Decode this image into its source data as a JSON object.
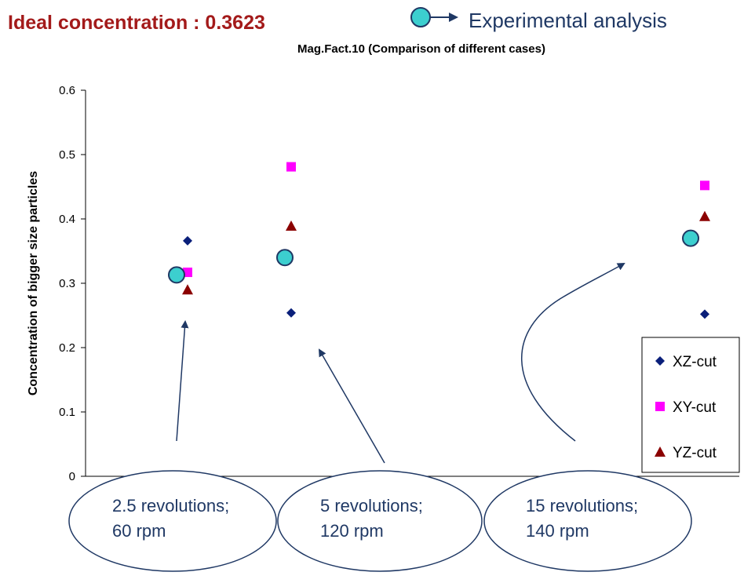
{
  "header": {
    "ideal_label": "Ideal concentration : 0.3623",
    "experimental_legend": "Experimental analysis"
  },
  "colors": {
    "ideal_text": "#a31a1a",
    "experimental": "#3ccfcf",
    "annotation": "#1f3864",
    "xz": "#0a1f7a",
    "xy": "#ff00ff",
    "yz": "#8b0000"
  },
  "chart_data": {
    "type": "scatter",
    "title": "Mag.Fact.10 (Comparison of different cases)",
    "ylabel": "Concentration of bigger size particles",
    "xlabel": "",
    "ylim": [
      0,
      0.6
    ],
    "yticks": [
      "0",
      "0.1",
      "0.2",
      "0.3",
      "0.4",
      "0.5",
      "0.6"
    ],
    "categories": [
      "2.5 revolutions; 60 rpm",
      "5 revolutions; 120 rpm",
      "15 revolutions; 140 rpm"
    ],
    "series": [
      {
        "name": "XZ-cut",
        "marker": "diamond",
        "values": [
          0.366,
          0.254,
          0.252
        ]
      },
      {
        "name": "XY-cut",
        "marker": "square",
        "values": [
          0.317,
          0.481,
          0.452
        ]
      },
      {
        "name": "YZ-cut",
        "marker": "triangle",
        "values": [
          0.29,
          0.389,
          0.404
        ]
      },
      {
        "name": "Experimental analysis",
        "marker": "circle",
        "values": [
          0.313,
          0.34,
          0.37
        ]
      }
    ],
    "legend": [
      "XZ-cut",
      "XY-cut",
      "YZ-cut"
    ],
    "legend_position": "bottom-right",
    "grid": false
  },
  "annotations": [
    {
      "line1": "2.5 revolutions;",
      "line2": "60 rpm"
    },
    {
      "line1": "5 revolutions;",
      "line2": "120 rpm"
    },
    {
      "line1": "15 revolutions;",
      "line2": "140 rpm"
    }
  ]
}
